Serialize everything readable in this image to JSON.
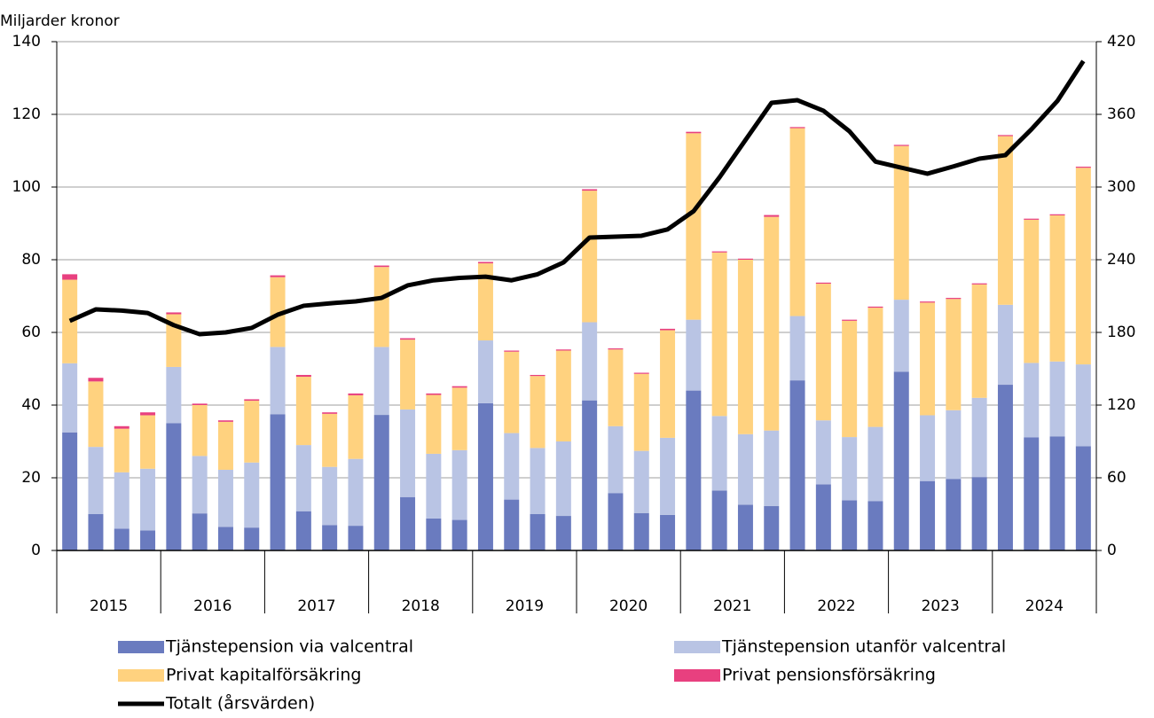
{
  "chart_data": {
    "type": "bar",
    "stacked": true,
    "y_axis_label": "Miljarder kronor",
    "x_groups": [
      "2015",
      "2016",
      "2017",
      "2018",
      "2019",
      "2020",
      "2021",
      "2022",
      "2023",
      "2024"
    ],
    "categories": [
      null,
      null,
      null,
      null,
      null,
      null,
      null,
      null,
      null,
      null,
      null,
      null,
      null,
      null,
      null,
      null,
      null,
      null,
      null,
      null,
      null,
      null,
      null,
      null,
      null,
      null,
      null,
      null,
      null,
      null,
      null,
      null,
      null,
      null,
      null,
      null,
      null,
      null,
      null,
      null
    ],
    "ylim": [
      0,
      140
    ],
    "yticks": [
      0,
      20,
      40,
      60,
      80,
      100,
      120,
      140
    ],
    "y2lim": [
      0,
      420
    ],
    "y2ticks": [
      0,
      60,
      120,
      180,
      240,
      300,
      360,
      420
    ],
    "grid": true,
    "legend": "bottom",
    "series": [
      {
        "name": "Tjänstepension via valcentral",
        "color": "#6a7bbf",
        "values": [
          32.5,
          10,
          6,
          5.5,
          35,
          10.2,
          6.5,
          6.3,
          37.5,
          10.8,
          7,
          6.8,
          37.3,
          14.7,
          8.8,
          8.4,
          40.5,
          14,
          10,
          9.5,
          41.3,
          15.8,
          10.3,
          9.8,
          44,
          16.5,
          12.6,
          12.2,
          46.8,
          18.2,
          13.8,
          13.6,
          49.2,
          19.1,
          19.7,
          20.2,
          45.6,
          31.1,
          31.4,
          28.7
        ]
      },
      {
        "name": "Tjänstepension utanför valcentral",
        "color": "#b9c4e4",
        "values": [
          19,
          18.5,
          15.5,
          17,
          15.5,
          15.8,
          15.7,
          17.9,
          18.5,
          18.2,
          16,
          18.4,
          18.7,
          24.1,
          17.8,
          19.2,
          17.3,
          18.3,
          18.2,
          20.5,
          21.5,
          18.4,
          17.1,
          21.2,
          19.5,
          20.5,
          19.4,
          20.8,
          17.7,
          17.6,
          17.4,
          20.4,
          19.8,
          18.1,
          18.9,
          21.8,
          22,
          20.5,
          20.6,
          22.5
        ]
      },
      {
        "name": "Privat kapitalförsäkring",
        "color": "#ffd27f",
        "values": [
          23,
          18,
          12,
          14.7,
          14.5,
          14,
          13.2,
          17,
          19.2,
          18.8,
          14.6,
          17.5,
          22,
          19.2,
          16.2,
          17.2,
          21.2,
          22.4,
          19.8,
          25,
          36.2,
          21.1,
          21.2,
          29.6,
          51.3,
          45,
          48,
          58.8,
          51.7,
          37.6,
          32,
          32.8,
          42.3,
          31,
          30.6,
          31.2,
          46.4,
          39.4,
          40.2,
          54.1
        ]
      },
      {
        "name": "Privat pensionsförsäkring",
        "color": "#e8407f",
        "values": [
          1.5,
          1,
          0.7,
          0.8,
          0.5,
          0.4,
          0.4,
          0.4,
          0.5,
          0.5,
          0.4,
          0.5,
          0.4,
          0.4,
          0.4,
          0.4,
          0.4,
          0.3,
          0.3,
          0.3,
          0.4,
          0.3,
          0.3,
          0.4,
          0.4,
          0.3,
          0.3,
          0.5,
          0.3,
          0.3,
          0.3,
          0.3,
          0.3,
          0.3,
          0.3,
          0.3,
          0.3,
          0.3,
          0.3,
          0.3
        ]
      },
      {
        "name": "Totalt (årsvärden)",
        "color": "#000000",
        "type": "line",
        "axis": "y2",
        "values": [
          189.5,
          199,
          198,
          196,
          186,
          178.5,
          180,
          183.7,
          194.6,
          202,
          204,
          205.6,
          208.5,
          218.8,
          223,
          225,
          226,
          223,
          228,
          237.8,
          258.3,
          259,
          259.8,
          265,
          280,
          308,
          338.8,
          369.5,
          371.7,
          363,
          346,
          321,
          316,
          311,
          317,
          323.4,
          326.3,
          347.6,
          371,
          404
        ]
      }
    ]
  }
}
